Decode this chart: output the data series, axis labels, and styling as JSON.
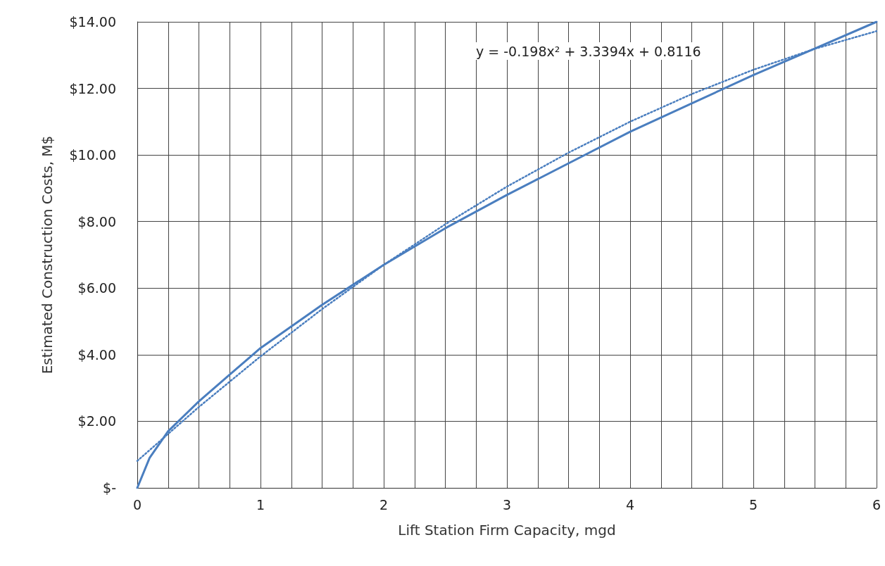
{
  "chart_data": {
    "type": "line",
    "xlabel": "Lift Station Firm Capacity, mgd",
    "ylabel": "Estimated Construction Costs, M$",
    "xlim": [
      0,
      6
    ],
    "ylim": [
      0,
      14
    ],
    "xticks": [
      0,
      {
        "value": 0.25,
        "label": null
      },
      {
        "value": 0.5,
        "label": null
      },
      {
        "value": 0.75,
        "label": null
      },
      1,
      {
        "value": 1.25,
        "label": null
      },
      {
        "value": 1.5,
        "label": null
      },
      {
        "value": 1.75,
        "label": null
      },
      2,
      {
        "value": 2.25,
        "label": null
      },
      {
        "value": 2.5,
        "label": null
      },
      {
        "value": 2.75,
        "label": null
      },
      3,
      {
        "value": 3.25,
        "label": null
      },
      {
        "value": 3.5,
        "label": null
      },
      {
        "value": 3.75,
        "label": null
      },
      4,
      {
        "value": 4.25,
        "label": null
      },
      {
        "value": 4.5,
        "label": null
      },
      {
        "value": 4.75,
        "label": null
      },
      5,
      {
        "value": 5.25,
        "label": null
      },
      {
        "value": 5.5,
        "label": null
      },
      {
        "value": 5.75,
        "label": null
      },
      6
    ],
    "yticks": [
      {
        "value": 0,
        "label": "$-"
      },
      {
        "value": 2,
        "label": "$2.00"
      },
      {
        "value": 4,
        "label": "$4.00"
      },
      {
        "value": 6,
        "label": "$6.00"
      },
      {
        "value": 8,
        "label": "$8.00"
      },
      {
        "value": 10,
        "label": "$10.00"
      },
      {
        "value": 12,
        "label": "$12.00"
      },
      {
        "value": 14,
        "label": "$14.00"
      }
    ],
    "grid": true,
    "marker": "none",
    "annotations": [
      "y = -0.198x² + 3.3394x + 0.8116"
    ],
    "series": [
      {
        "color": "#4a7ebf",
        "line_style": "solid",
        "x": [
          0,
          0.1,
          0.25,
          0.5,
          0.75,
          1,
          1.5,
          2,
          2.5,
          3,
          3.5,
          4,
          4.5,
          5,
          5.5,
          6
        ],
        "values": [
          0,
          0.9,
          1.7,
          2.6,
          3.4,
          4.2,
          5.5,
          6.7,
          7.8,
          8.8,
          9.75,
          10.7,
          11.55,
          12.4,
          13.2,
          14.0
        ]
      },
      {
        "color": "#4a7ebf",
        "line_style": "dotted",
        "x": [
          0,
          0.5,
          1,
          1.5,
          2,
          2.5,
          3,
          3.5,
          4,
          4.5,
          5,
          5.5,
          6
        ],
        "values": [
          0.81,
          2.43,
          3.95,
          5.37,
          6.7,
          7.92,
          9.05,
          10.07,
          11.0,
          11.83,
          12.56,
          13.19,
          13.72
        ]
      }
    ]
  }
}
